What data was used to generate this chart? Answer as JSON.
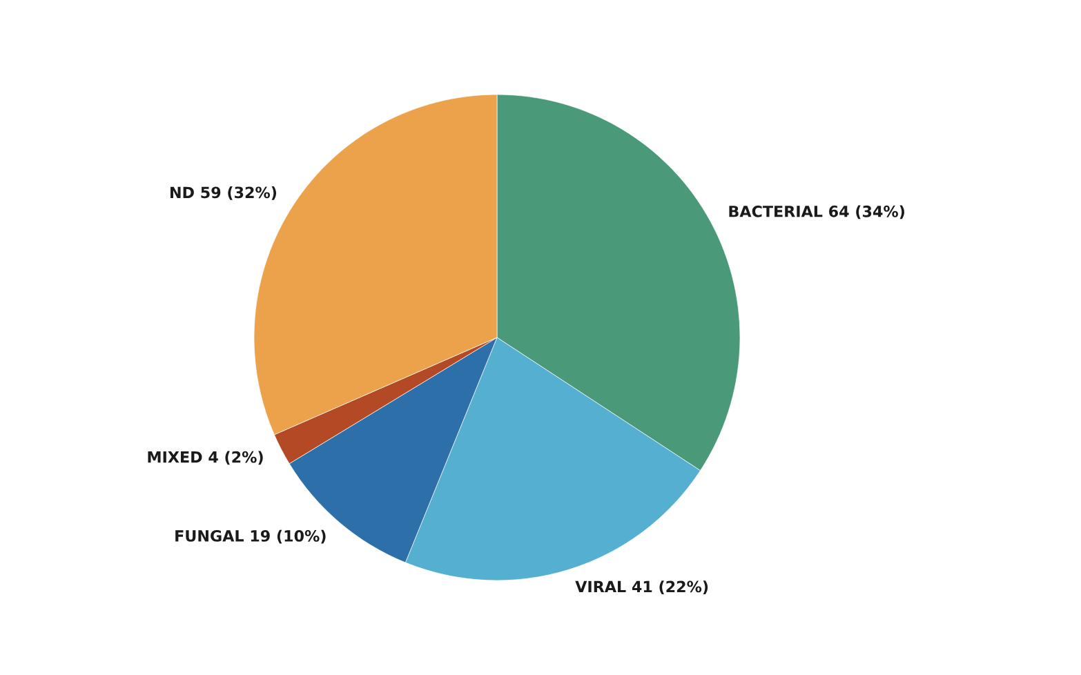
{
  "chart_data": {
    "type": "pie",
    "categories": [
      "BACTERIAL",
      "VIRAL",
      "FUNGAL",
      "MIXED",
      "ND"
    ],
    "values": [
      64,
      41,
      19,
      4,
      59
    ],
    "value_labels": [
      "64 (34%)",
      "41 (22%)",
      "19 (10%)",
      "4 (2%)",
      "59 (32%)"
    ],
    "colors": [
      "#4a9a7a",
      "#55afd0",
      "#2d6fa8",
      "#b34a25",
      "#eba24a"
    ],
    "legend": false
  }
}
